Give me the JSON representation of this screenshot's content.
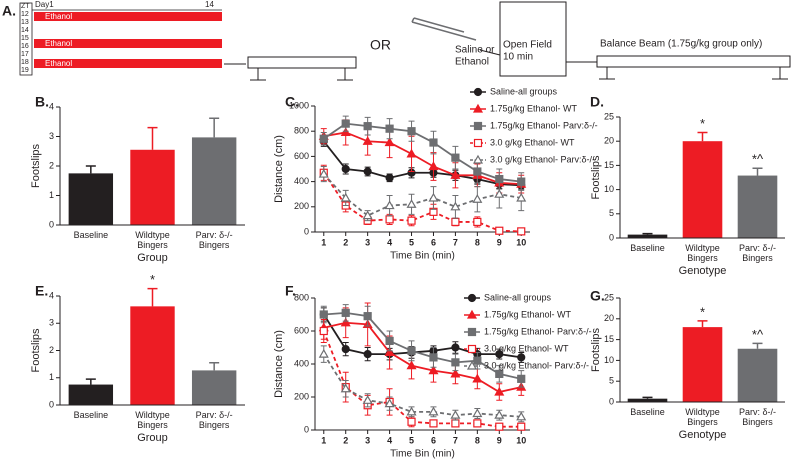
{
  "diagram": {
    "label": "A.",
    "zt": "ZT",
    "day": "Day1",
    "hour": "14",
    "rows": [
      "12",
      "13",
      "14",
      "15",
      "16",
      "17",
      "18",
      "19"
    ],
    "ethanol": [
      "Ethanol",
      "Ethanol",
      "Ethanol"
    ],
    "or": "OR",
    "saline_label": [
      "Saline or",
      "Ethanol"
    ],
    "open_field": [
      "Open Field",
      "10 min"
    ],
    "balance_beam": "Balance Beam (1.75g/kg group only)"
  },
  "chart_data": [
    {
      "type": "bar",
      "label": "B.",
      "ylabel": "Footslips",
      "xlabel": "Group",
      "categories": [
        "Baseline",
        "Wildtype\nBingers",
        "Parv: δ-/-\nBingers"
      ],
      "values": [
        1.75,
        2.55,
        2.97
      ],
      "errors": [
        0.25,
        0.75,
        0.65
      ],
      "colors": [
        "#231f20",
        "#ed1c24",
        "#6d6e71"
      ],
      "ylim": [
        0,
        4
      ],
      "yticks": [
        0,
        1,
        2,
        3,
        4
      ]
    },
    {
      "type": "line",
      "label": "C.",
      "ylabel": "Distance (cm)",
      "xlabel": "Time Bin (min)",
      "x": [
        1,
        2,
        3,
        4,
        5,
        6,
        7,
        8,
        9,
        10
      ],
      "xlim": [
        0.6,
        10.4
      ],
      "xticks": [
        1,
        2,
        3,
        4,
        5,
        6,
        7,
        8,
        9,
        10
      ],
      "ylim": [
        0,
        1000
      ],
      "yticks": [
        0,
        200,
        400,
        600,
        800,
        1000
      ],
      "series": [
        {
          "name": "Saline-all groups",
          "color": "#231f20",
          "marker": "circle",
          "filled": true,
          "dashed": false,
          "values": [
            720,
            500,
            480,
            430,
            470,
            470,
            450,
            420,
            380,
            370
          ],
          "errors": [
            40,
            40,
            35,
            30,
            40,
            35,
            40,
            40,
            35,
            30
          ]
        },
        {
          "name": "1.75g/kg Ethanol- WT",
          "color": "#ed1c24",
          "marker": "triangle",
          "filled": true,
          "dashed": false,
          "values": [
            760,
            790,
            720,
            710,
            620,
            520,
            450,
            450,
            390,
            380
          ],
          "errors": [
            60,
            100,
            110,
            120,
            140,
            110,
            100,
            90,
            80,
            70
          ]
        },
        {
          "name": "1.75g/kg Ethanol- Parv:δ-/-",
          "color": "#6d6e71",
          "marker": "square",
          "filled": true,
          "dashed": false,
          "values": [
            740,
            860,
            840,
            820,
            800,
            710,
            590,
            480,
            420,
            400
          ],
          "errors": [
            50,
            60,
            70,
            80,
            80,
            90,
            90,
            90,
            80,
            70
          ]
        },
        {
          "name": "3.0 g/kg Ethanol- WT",
          "color": "#ed1c24",
          "marker": "square",
          "filled": false,
          "dashed": true,
          "values": [
            470,
            210,
            90,
            100,
            90,
            160,
            80,
            80,
            10,
            5
          ],
          "errors": [
            60,
            50,
            30,
            40,
            40,
            60,
            30,
            40,
            10,
            5
          ]
        },
        {
          "name": "3.0 g/kg Ethanol- Parv:δ-/-",
          "color": "#6d6e71",
          "marker": "triangle",
          "filled": false,
          "dashed": true,
          "values": [
            460,
            270,
            130,
            210,
            220,
            270,
            200,
            260,
            300,
            270
          ],
          "errors": [
            60,
            60,
            40,
            80,
            80,
            90,
            90,
            100,
            110,
            100
          ]
        }
      ]
    },
    {
      "type": "bar",
      "label": "D.",
      "ylabel": "Footslips",
      "xlabel": "Genotype",
      "categories": [
        "Baseline",
        "Wildtype\nBingers",
        "Parv: δ-/-\nBingers"
      ],
      "values": [
        0.7,
        20,
        12.9
      ],
      "errors": [
        0.2,
        1.8,
        1.5
      ],
      "annotations": [
        null,
        "*",
        "*^"
      ],
      "colors": [
        "#231f20",
        "#ed1c24",
        "#6d6e71"
      ],
      "ylim": [
        0,
        25
      ],
      "yticks": [
        0,
        5,
        10,
        15,
        20,
        25
      ]
    },
    {
      "type": "bar",
      "label": "E.",
      "ylabel": "Footslips",
      "xlabel": "Group",
      "categories": [
        "Baseline",
        "Wildtype\nBingers",
        "Parv: δ-/-\nBingers"
      ],
      "values": [
        0.75,
        3.62,
        1.27
      ],
      "errors": [
        0.2,
        0.65,
        0.28
      ],
      "annotations": [
        null,
        "*",
        null
      ],
      "colors": [
        "#231f20",
        "#ed1c24",
        "#6d6e71"
      ],
      "ylim": [
        0,
        4
      ],
      "yticks": [
        0,
        1,
        2,
        3,
        4
      ]
    },
    {
      "type": "line",
      "label": "F.",
      "ylabel": "Distance (cm)",
      "xlabel": "Time Bin (min)",
      "x": [
        1,
        2,
        3,
        4,
        5,
        6,
        7,
        8,
        9,
        10
      ],
      "xlim": [
        0.6,
        10.4
      ],
      "xticks": [
        1,
        2,
        3,
        4,
        5,
        6,
        7,
        8,
        9,
        10
      ],
      "ylim": [
        0,
        800
      ],
      "yticks": [
        0,
        200,
        400,
        600,
        800
      ],
      "series": [
        {
          "name": "Saline-all groups",
          "color": "#231f20",
          "marker": "circle",
          "filled": true,
          "dashed": false,
          "values": [
            700,
            490,
            460,
            460,
            470,
            480,
            500,
            460,
            460,
            440
          ],
          "errors": [
            40,
            40,
            40,
            35,
            35,
            30,
            35,
            35,
            30,
            30
          ]
        },
        {
          "name": "1.75g/kg Ethanol- WT",
          "color": "#ed1c24",
          "marker": "triangle",
          "filled": true,
          "dashed": false,
          "values": [
            620,
            650,
            640,
            470,
            390,
            360,
            340,
            310,
            230,
            260
          ],
          "errors": [
            70,
            90,
            130,
            100,
            80,
            70,
            60,
            60,
            50,
            50
          ]
        },
        {
          "name": "1.75g/kg Ethanol- Parv:δ-/-",
          "color": "#6d6e71",
          "marker": "square",
          "filled": true,
          "dashed": false,
          "values": [
            700,
            710,
            690,
            540,
            480,
            440,
            410,
            420,
            340,
            310
          ],
          "errors": [
            50,
            50,
            60,
            60,
            60,
            60,
            50,
            50,
            50,
            50
          ]
        },
        {
          "name": "3.0 g/kg Ethanol- WT",
          "color": "#ed1c24",
          "marker": "square",
          "filled": false,
          "dashed": true,
          "values": [
            600,
            260,
            150,
            170,
            50,
            40,
            40,
            40,
            20,
            20
          ],
          "errors": [
            70,
            90,
            60,
            80,
            30,
            20,
            20,
            20,
            10,
            10
          ]
        },
        {
          "name": "3.0 g/kg Ethanol- Parv:δ-/-",
          "color": "#6d6e71",
          "marker": "triangle",
          "filled": false,
          "dashed": true,
          "values": [
            460,
            250,
            180,
            160,
            110,
            110,
            90,
            100,
            90,
            80
          ],
          "errors": [
            50,
            50,
            40,
            40,
            30,
            30,
            30,
            30,
            30,
            30
          ]
        }
      ]
    },
    {
      "type": "bar",
      "label": "G.",
      "ylabel": "Footslips",
      "xlabel": "Genotype",
      "categories": [
        "Baseline",
        "Wildtype\nBingers",
        "Parv: δ-/-\nBingers"
      ],
      "values": [
        0.8,
        18,
        12.8
      ],
      "errors": [
        0.3,
        1.5,
        1.3
      ],
      "annotations": [
        null,
        "*",
        "*^"
      ],
      "colors": [
        "#231f20",
        "#ed1c24",
        "#6d6e71"
      ],
      "ylim": [
        0,
        25
      ],
      "yticks": [
        0,
        5,
        10,
        15,
        20,
        25
      ]
    }
  ]
}
